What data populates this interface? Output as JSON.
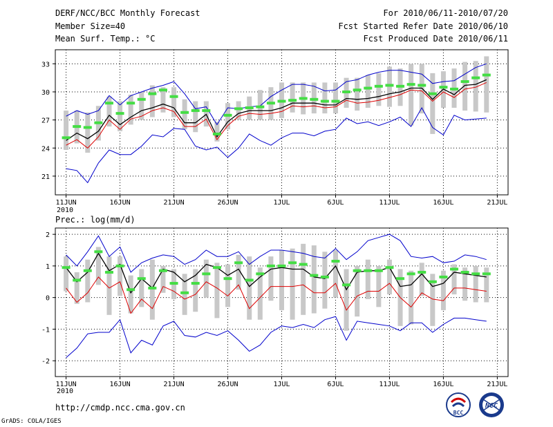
{
  "header": {
    "title": "DERF/NCC/BCC Monthly Forecast",
    "member_size": "Member Size=40",
    "variable_1": "Mean Surf. Temp.: °C",
    "period": "For 2010/06/11-2010/07/20",
    "fcst_started": "Fcst Started Refer Date 2010/06/10",
    "fcst_produced": "Fcst Produced Date 2010/06/11"
  },
  "footer": {
    "url": "http://cmdp.ncc.cma.gov.cn",
    "grads": "GrADS: COLA/IGES",
    "year_label_top": "2010",
    "year_label_bottom": "2010"
  },
  "logos": {
    "bcc_text": "BCC",
    "ncc_text": "NCC"
  },
  "colors": {
    "ensemble_bar": "#c8c8c8",
    "mean": "#000000",
    "min_max": "#0000cc",
    "median_red": "#dd0000",
    "green_marker": "#44dd44",
    "grid": "#000000"
  },
  "chart_data": [
    {
      "type": "line",
      "title": "Mean Surf. Temp.: °C",
      "x_tick_labels": [
        "11JUN",
        "16JUN",
        "21JUN",
        "26JUN",
        "1JUL",
        "6JUL",
        "11JUL",
        "16JUL",
        "21JUL"
      ],
      "x_tick_days": [
        1,
        6,
        11,
        16,
        21,
        26,
        31,
        36,
        41
      ],
      "ylim": [
        19,
        34.5
      ],
      "y_ticks": [
        21,
        24,
        27,
        30,
        33
      ],
      "days": [
        1,
        2,
        3,
        4,
        5,
        6,
        7,
        8,
        9,
        10,
        11,
        12,
        13,
        14,
        15,
        16,
        17,
        18,
        19,
        20,
        21,
        22,
        23,
        24,
        25,
        26,
        27,
        28,
        29,
        30,
        31,
        32,
        33,
        34,
        35,
        36,
        37,
        38,
        39,
        40
      ],
      "series": [
        {
          "name": "ensemble_mean",
          "values": [
            24.8,
            25.6,
            25.0,
            25.8,
            27.5,
            26.5,
            27.3,
            28.0,
            28.3,
            28.7,
            28.3,
            26.7,
            26.7,
            27.6,
            25.2,
            26.8,
            27.7,
            28.0,
            28.0,
            28.0,
            28.3,
            28.8,
            28.8,
            28.8,
            28.6,
            28.6,
            29.3,
            29.2,
            29.3,
            29.5,
            29.8,
            30.0,
            30.4,
            30.4,
            29.2,
            30.3,
            29.7,
            30.7,
            30.8,
            31.3
          ]
        },
        {
          "name": "ens_max",
          "values": [
            27.4,
            28.0,
            27.6,
            28.0,
            29.6,
            28.6,
            29.6,
            30.0,
            30.4,
            30.7,
            31.1,
            29.8,
            28.2,
            28.4,
            26.5,
            28.3,
            28.2,
            28.4,
            28.5,
            29.5,
            30.2,
            30.8,
            30.8,
            30.6,
            30.1,
            30.2,
            31.1,
            31.3,
            31.8,
            32.1,
            32.3,
            32.3,
            32.1,
            31.9,
            30.9,
            31.1,
            31.2,
            31.9,
            32.6,
            33.0
          ]
        },
        {
          "name": "ens_min",
          "values": [
            21.8,
            21.6,
            20.3,
            22.4,
            23.8,
            23.3,
            23.3,
            24.2,
            25.4,
            25.2,
            26.1,
            26.0,
            24.2,
            23.8,
            24.1,
            23.0,
            24.0,
            25.5,
            24.8,
            24.3,
            25.1,
            25.6,
            25.6,
            25.3,
            25.8,
            26.0,
            27.2,
            26.6,
            26.8,
            26.4,
            26.8,
            27.3,
            26.3,
            28.3,
            26.2,
            25.4,
            27.5,
            27.0,
            27.1,
            27.2
          ]
        },
        {
          "name": "red_line",
          "values": [
            24.3,
            24.9,
            24.0,
            25.2,
            27.0,
            26.0,
            27.1,
            27.4,
            28.0,
            28.3,
            27.9,
            26.3,
            26.3,
            27.1,
            24.9,
            26.4,
            27.4,
            27.7,
            27.6,
            27.7,
            27.9,
            28.5,
            28.4,
            28.5,
            28.3,
            28.4,
            29.1,
            28.8,
            28.9,
            29.1,
            29.4,
            29.7,
            30.2,
            30.1,
            29.0,
            30.0,
            29.4,
            30.3,
            30.5,
            31.0
          ]
        }
      ],
      "bars_low": [
        23.8,
        24.5,
        23.5,
        24.8,
        26.3,
        25.8,
        26.5,
        27.0,
        27.3,
        27.8,
        27.3,
        26.0,
        25.7,
        26.3,
        24.7,
        26.0,
        27.0,
        27.0,
        27.0,
        27.0,
        27.2,
        27.8,
        27.6,
        27.7,
        27.7,
        27.7,
        28.3,
        28.0,
        28.3,
        28.5,
        28.4,
        28.5,
        26.4,
        27.7,
        25.5,
        28.3,
        28.3,
        28.0,
        27.9,
        27.8
      ],
      "bars_high": [
        28.0,
        28.0,
        27.8,
        28.5,
        29.5,
        29.0,
        29.7,
        30.0,
        30.7,
        30.5,
        30.5,
        29.2,
        29.0,
        29.0,
        26.8,
        28.8,
        29.0,
        29.5,
        30.2,
        30.5,
        31.0,
        31.0,
        31.0,
        31.0,
        31.0,
        31.0,
        31.5,
        31.5,
        31.8,
        32.0,
        32.7,
        32.5,
        33.0,
        33.0,
        32.0,
        32.2,
        32.5,
        33.2,
        33.3,
        33.8
      ],
      "green_markers": [
        25.1,
        26.3,
        26.2,
        26.7,
        28.8,
        27.7,
        28.8,
        29.2,
        29.8,
        30.2,
        29.5,
        27.8,
        28.0,
        28.0,
        25.5,
        27.5,
        28.2,
        28.3,
        28.4,
        28.8,
        29.0,
        29.1,
        29.3,
        29.2,
        29.0,
        29.0,
        30.0,
        30.2,
        30.4,
        30.6,
        30.7,
        30.6,
        30.8,
        30.7,
        29.8,
        30.5,
        30.3,
        31.1,
        31.5,
        31.8
      ]
    },
    {
      "type": "line",
      "title": "Prec.: log(mm/d)",
      "x_tick_labels": [
        "11JUN",
        "16JUN",
        "21JUN",
        "26JUN",
        "1JUL",
        "6JUL",
        "11JUL",
        "16JUL",
        "21JUL"
      ],
      "x_tick_days": [
        1,
        6,
        11,
        16,
        21,
        26,
        31,
        36,
        41
      ],
      "ylim": [
        -2.5,
        2.2
      ],
      "y_ticks": [
        -2,
        -1,
        0,
        1,
        2
      ],
      "days": [
        1,
        2,
        3,
        4,
        5,
        6,
        7,
        8,
        9,
        10,
        11,
        12,
        13,
        14,
        15,
        16,
        17,
        18,
        19,
        20,
        21,
        22,
        23,
        24,
        25,
        26,
        27,
        28,
        29,
        30,
        31,
        32,
        33,
        34,
        35,
        36,
        37,
        38,
        39,
        40
      ],
      "series": [
        {
          "name": "ensemble_mean",
          "values": [
            0.95,
            0.5,
            0.8,
            1.4,
            0.85,
            1.05,
            0.15,
            0.6,
            0.3,
            0.9,
            0.8,
            0.5,
            0.7,
            1.05,
            0.95,
            0.7,
            0.9,
            0.35,
            0.65,
            0.9,
            0.95,
            0.9,
            0.9,
            0.65,
            0.6,
            1.0,
            0.25,
            0.8,
            0.85,
            0.85,
            0.95,
            0.35,
            0.4,
            0.75,
            0.35,
            0.45,
            0.8,
            0.75,
            0.7,
            0.65
          ]
        },
        {
          "name": "ens_max",
          "values": [
            1.35,
            1.0,
            1.45,
            1.95,
            1.3,
            1.6,
            0.8,
            1.1,
            1.25,
            1.35,
            1.3,
            1.05,
            1.2,
            1.5,
            1.3,
            1.3,
            1.45,
            1.05,
            1.3,
            1.5,
            1.5,
            1.45,
            1.4,
            1.3,
            1.25,
            1.55,
            1.2,
            1.45,
            1.8,
            1.9,
            2.0,
            1.8,
            1.3,
            1.25,
            1.3,
            1.1,
            1.15,
            1.35,
            1.3,
            1.2
          ]
        },
        {
          "name": "ens_min",
          "values": [
            -1.9,
            -1.6,
            -1.15,
            -1.1,
            -1.1,
            -0.7,
            -1.75,
            -1.35,
            -1.5,
            -0.9,
            -0.75,
            -1.2,
            -1.25,
            -1.1,
            -1.2,
            -1.05,
            -1.35,
            -1.7,
            -1.5,
            -1.1,
            -0.9,
            -0.95,
            -0.85,
            -0.95,
            -0.7,
            -0.6,
            -1.35,
            -0.75,
            -0.8,
            -0.85,
            -0.9,
            -1.05,
            -0.8,
            -0.8,
            -1.1,
            -0.85,
            -0.65,
            -0.65,
            -0.7,
            -0.75
          ]
        },
        {
          "name": "red_line",
          "values": [
            0.3,
            -0.15,
            0.15,
            0.65,
            0.3,
            0.5,
            -0.5,
            -0.05,
            -0.35,
            0.35,
            0.2,
            -0.05,
            0.1,
            0.5,
            0.3,
            0.05,
            0.4,
            -0.35,
            0.0,
            0.35,
            0.35,
            0.35,
            0.4,
            0.15,
            0.15,
            0.45,
            -0.4,
            0.05,
            0.2,
            0.2,
            0.45,
            0.0,
            -0.3,
            0.15,
            -0.05,
            -0.1,
            0.3,
            0.3,
            0.25,
            0.2
          ]
        }
      ],
      "bars_low": [
        0.2,
        -0.2,
        -0.15,
        0.4,
        -0.55,
        0.05,
        -0.5,
        -0.3,
        -0.7,
        0.15,
        -0.05,
        -0.55,
        -0.45,
        0.0,
        -0.65,
        -0.3,
        0.25,
        -0.7,
        -0.7,
        -0.1,
        -0.4,
        -0.7,
        -0.55,
        -0.5,
        -0.35,
        0.0,
        -1.05,
        -0.6,
        -0.05,
        -0.3,
        0.1,
        -0.9,
        -0.85,
        0.05,
        -0.9,
        -0.4,
        0.1,
        -0.1,
        -0.15,
        -0.15
      ],
      "bars_high": [
        1.3,
        0.8,
        1.2,
        1.6,
        1.3,
        1.3,
        0.7,
        0.9,
        1.2,
        1.0,
        0.9,
        0.75,
        0.9,
        1.2,
        1.1,
        1.05,
        1.35,
        1.3,
        0.95,
        1.3,
        1.5,
        1.55,
        1.7,
        1.65,
        1.45,
        1.5,
        0.9,
        1.0,
        1.2,
        1.0,
        1.2,
        0.9,
        0.85,
        1.1,
        0.75,
        0.85,
        1.05,
        0.95,
        1.0,
        0.95
      ],
      "green_markers": [
        0.95,
        0.55,
        0.85,
        1.45,
        0.8,
        1.0,
        0.25,
        0.6,
        0.3,
        0.85,
        0.45,
        0.15,
        0.45,
        0.75,
        0.95,
        0.6,
        1.1,
        0.55,
        0.75,
        1.0,
        1.0,
        1.1,
        1.05,
        0.7,
        0.65,
        1.15,
        0.4,
        0.85,
        0.85,
        0.85,
        0.95,
        0.6,
        0.75,
        0.8,
        0.5,
        0.65,
        0.9,
        0.8,
        0.75,
        0.75
      ]
    }
  ]
}
